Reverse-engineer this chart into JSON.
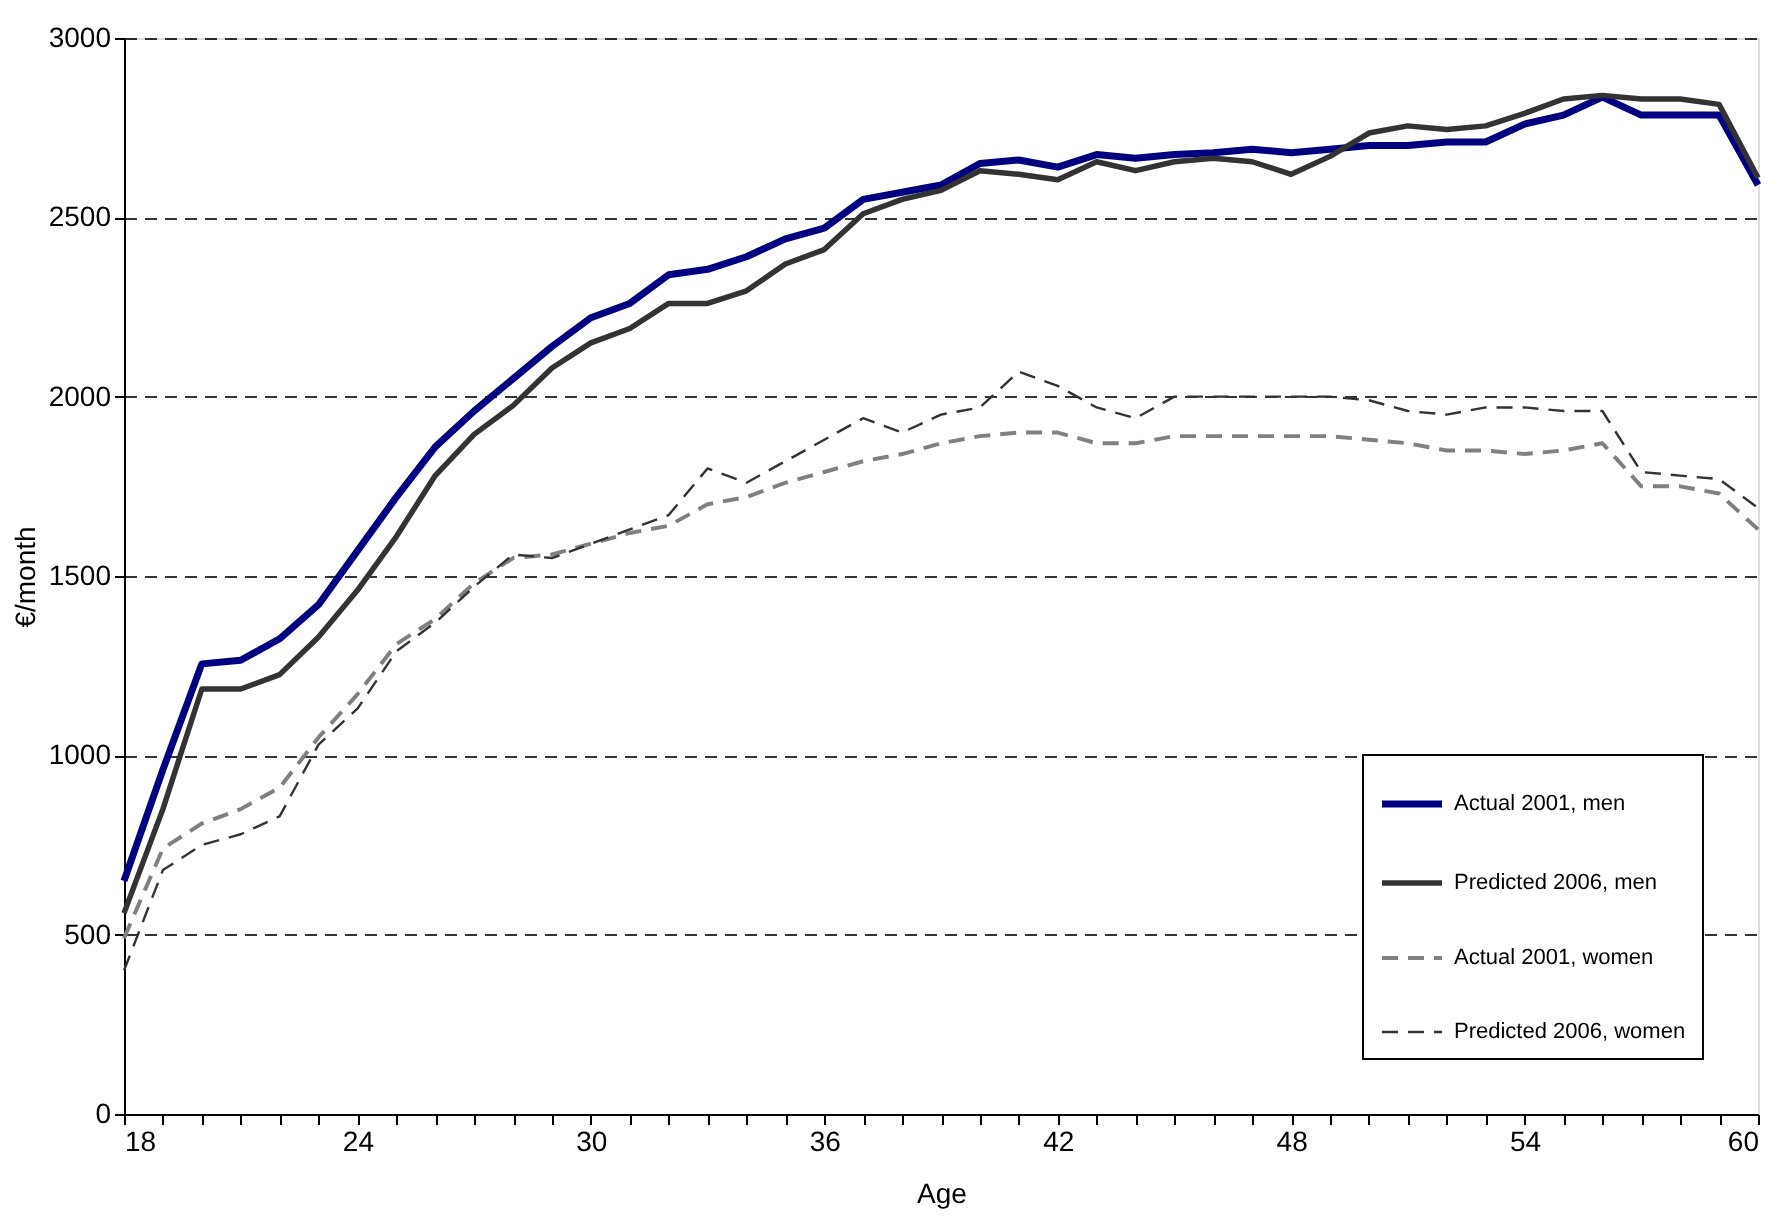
{
  "chart_data": {
    "type": "line",
    "xlabel": "Age",
    "ylabel": "€/month",
    "x": [
      18,
      19,
      20,
      21,
      22,
      23,
      24,
      25,
      26,
      27,
      28,
      29,
      30,
      31,
      32,
      33,
      34,
      35,
      36,
      37,
      38,
      39,
      40,
      41,
      42,
      43,
      44,
      45,
      46,
      47,
      48,
      49,
      50,
      51,
      52,
      53,
      54,
      55,
      56,
      57,
      58,
      59,
      60
    ],
    "series": [
      {
        "name": "Actual 2001, men",
        "color": "#000080",
        "line_style": "solid",
        "values": [
          650,
          960,
          1255,
          1265,
          1325,
          1420,
          1570,
          1720,
          1860,
          1960,
          2050,
          2140,
          2220,
          2260,
          2340,
          2355,
          2390,
          2440,
          2470,
          2550,
          2570,
          2590,
          2650,
          2660,
          2640,
          2675,
          2665,
          2675,
          2680,
          2690,
          2680,
          2690,
          2700,
          2700,
          2710,
          2710,
          2760,
          2785,
          2835,
          2785,
          2785,
          2785,
          2590
        ]
      },
      {
        "name": "Predicted 2006, men",
        "color": "#333333",
        "line_style": "solid",
        "values": [
          560,
          850,
          1185,
          1185,
          1225,
          1330,
          1460,
          1610,
          1780,
          1895,
          1975,
          2080,
          2150,
          2190,
          2260,
          2260,
          2295,
          2370,
          2410,
          2510,
          2550,
          2575,
          2630,
          2620,
          2605,
          2655,
          2630,
          2655,
          2665,
          2655,
          2620,
          2670,
          2735,
          2755,
          2745,
          2755,
          2790,
          2830,
          2840,
          2830,
          2830,
          2815,
          2610
        ]
      },
      {
        "name": "Actual 2001, women",
        "color": "#808080",
        "line_style": "dashed",
        "values": [
          490,
          740,
          810,
          850,
          910,
          1050,
          1170,
          1310,
          1380,
          1480,
          1550,
          1560,
          1590,
          1620,
          1640,
          1700,
          1720,
          1760,
          1790,
          1820,
          1840,
          1870,
          1890,
          1900,
          1900,
          1870,
          1870,
          1890,
          1890,
          1890,
          1890,
          1890,
          1880,
          1870,
          1850,
          1850,
          1840,
          1850,
          1870,
          1750,
          1750,
          1730,
          1630
        ]
      },
      {
        "name": "Predicted 2006, women",
        "color": "#333333",
        "line_style": "dashed",
        "values": [
          400,
          680,
          750,
          780,
          830,
          1030,
          1130,
          1290,
          1370,
          1470,
          1560,
          1550,
          1590,
          1630,
          1670,
          1800,
          1760,
          1820,
          1880,
          1940,
          1900,
          1950,
          1970,
          2070,
          2030,
          1970,
          1940,
          2000,
          2000,
          2000,
          2000,
          2000,
          1990,
          1960,
          1950,
          1970,
          1970,
          1960,
          1960,
          1790,
          1780,
          1770,
          1690
        ]
      }
    ],
    "xlim": [
      18,
      60
    ],
    "xticks": [
      18,
      {
        "value": 19,
        "label": null
      },
      {
        "value": 20,
        "label": null
      },
      {
        "value": 21,
        "label": null
      },
      {
        "value": 22,
        "label": null
      },
      {
        "value": 23,
        "label": null
      },
      24,
      {
        "value": 25,
        "label": null
      },
      {
        "value": 26,
        "label": null
      },
      {
        "value": 27,
        "label": null
      },
      {
        "value": 28,
        "label": null
      },
      {
        "value": 29,
        "label": null
      },
      30,
      {
        "value": 31,
        "label": null
      },
      {
        "value": 32,
        "label": null
      },
      {
        "value": 33,
        "label": null
      },
      {
        "value": 34,
        "label": null
      },
      {
        "value": 35,
        "label": null
      },
      36,
      {
        "value": 37,
        "label": null
      },
      {
        "value": 38,
        "label": null
      },
      {
        "value": 39,
        "label": null
      },
      {
        "value": 40,
        "label": null
      },
      {
        "value": 41,
        "label": null
      },
      42,
      {
        "value": 43,
        "label": null
      },
      {
        "value": 44,
        "label": null
      },
      {
        "value": 45,
        "label": null
      },
      {
        "value": 46,
        "label": null
      },
      {
        "value": 47,
        "label": null
      },
      48,
      {
        "value": 49,
        "label": null
      },
      {
        "value": 50,
        "label": null
      },
      {
        "value": 51,
        "label": null
      },
      {
        "value": 52,
        "label": null
      },
      {
        "value": 53,
        "label": null
      },
      54,
      {
        "value": 55,
        "label": null
      },
      {
        "value": 56,
        "label": null
      },
      {
        "value": 57,
        "label": null
      },
      {
        "value": 58,
        "label": null
      },
      {
        "value": 59,
        "label": null
      },
      60
    ],
    "ylim": [
      0,
      3000
    ],
    "yticks": [
      0,
      500,
      1000,
      1500,
      2000,
      2500,
      3000
    ],
    "grid": "y",
    "legend": "bottom right",
    "marker": "none"
  }
}
